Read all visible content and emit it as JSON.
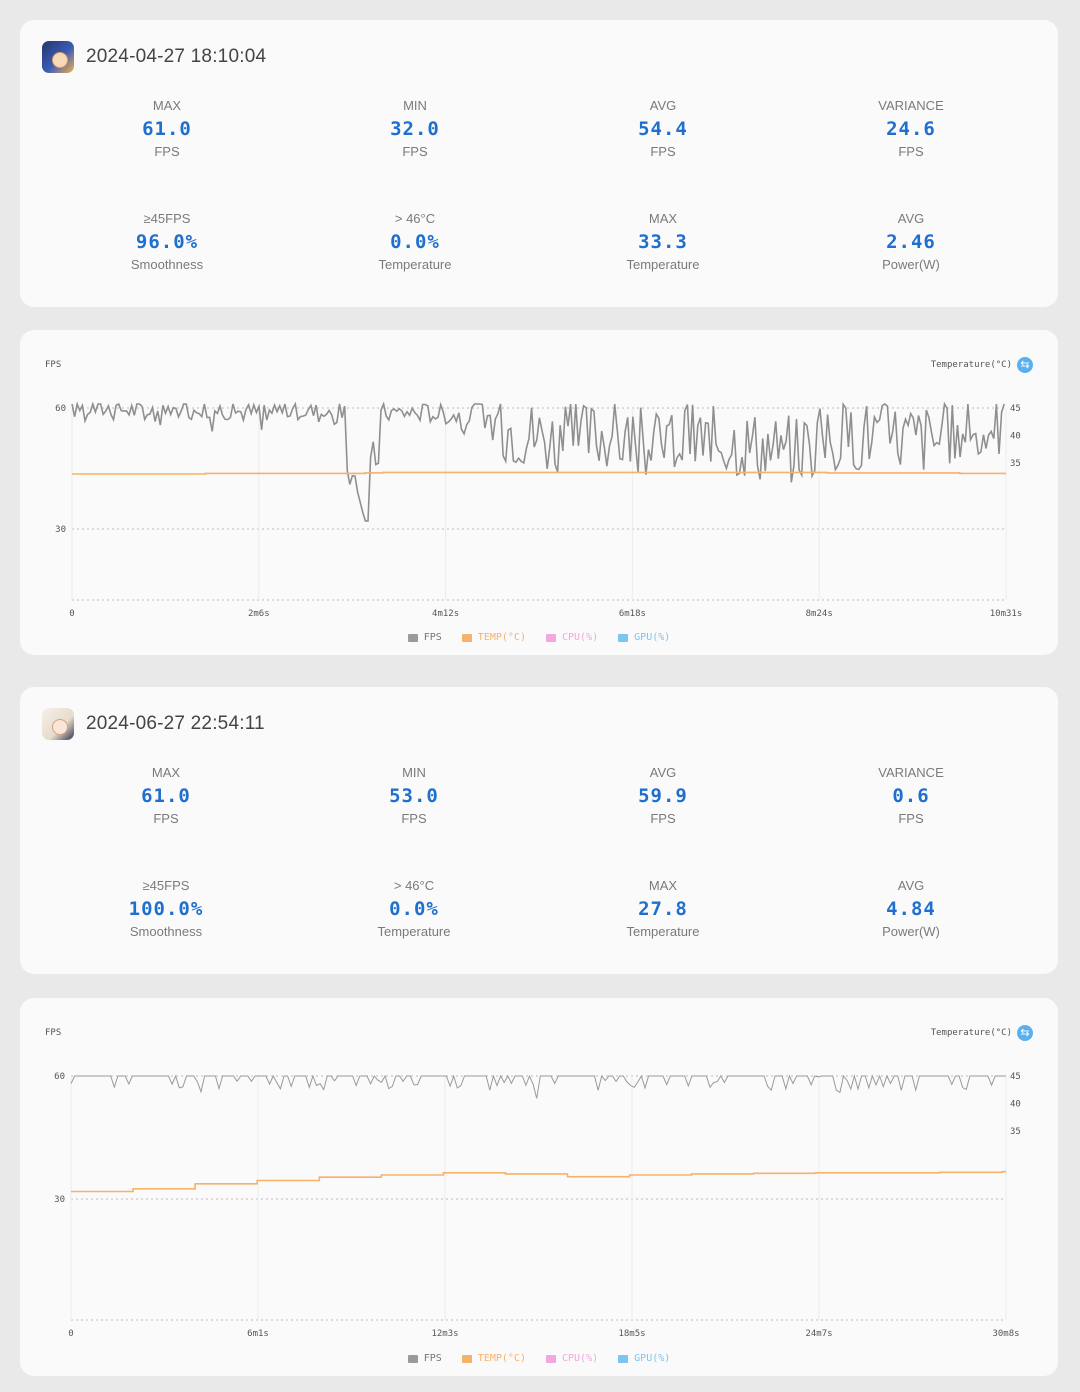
{
  "sessions": [
    {
      "datetime": "2024-04-27 18:10:04",
      "stats": [
        {
          "label": "MAX",
          "value": "61.0",
          "unit": "FPS"
        },
        {
          "label": "MIN",
          "value": "32.0",
          "unit": "FPS"
        },
        {
          "label": "AVG",
          "value": "54.4",
          "unit": "FPS"
        },
        {
          "label": "VARIANCE",
          "value": "24.6",
          "unit": "FPS"
        },
        {
          "label": "≥45FPS",
          "value": "96.0%",
          "unit": "Smoothness"
        },
        {
          "label": "> 46°C",
          "value": "0.0%",
          "unit": "Temperature"
        },
        {
          "label": "MAX",
          "value": "33.3",
          "unit": "Temperature"
        },
        {
          "label": "AVG",
          "value": "2.46",
          "unit": "Power(W)"
        }
      ],
      "chart": {
        "y_title": "FPS",
        "y2_title": "Temperature(°C)",
        "y_ticks": [
          "60",
          "30"
        ],
        "y2_ticks": [
          "45",
          "40",
          "35"
        ],
        "x_ticks": [
          "0",
          "2m6s",
          "4m12s",
          "6m18s",
          "8m24s",
          "10m31s"
        ]
      }
    },
    {
      "datetime": "2024-06-27 22:54:11",
      "stats": [
        {
          "label": "MAX",
          "value": "61.0",
          "unit": "FPS"
        },
        {
          "label": "MIN",
          "value": "53.0",
          "unit": "FPS"
        },
        {
          "label": "AVG",
          "value": "59.9",
          "unit": "FPS"
        },
        {
          "label": "VARIANCE",
          "value": "0.6",
          "unit": "FPS"
        },
        {
          "label": "≥45FPS",
          "value": "100.0%",
          "unit": "Smoothness"
        },
        {
          "label": "> 46°C",
          "value": "0.0%",
          "unit": "Temperature"
        },
        {
          "label": "MAX",
          "value": "27.8",
          "unit": "Temperature"
        },
        {
          "label": "AVG",
          "value": "4.84",
          "unit": "Power(W)"
        }
      ],
      "chart": {
        "y_title": "FPS",
        "y2_title": "Temperature(°C)",
        "y_ticks": [
          "60",
          "30"
        ],
        "y2_ticks": [
          "45",
          "40",
          "35"
        ],
        "x_ticks": [
          "0",
          "6m1s",
          "12m3s",
          "18m5s",
          "24m7s",
          "30m8s"
        ]
      }
    }
  ],
  "legend": [
    {
      "label": "FPS",
      "color": "#9a9a9a"
    },
    {
      "label": "TEMP(°C)",
      "color": "#f5b26b"
    },
    {
      "label": "CPU(%)",
      "color": "#f3a6e0"
    },
    {
      "label": "GPU(%)",
      "color": "#7cc4f2"
    }
  ],
  "chart_data": [
    {
      "type": "line",
      "xlabel": "",
      "ylabel": "FPS",
      "y2label": "Temperature(°C)",
      "x_ticks": [
        "0",
        "2m6s",
        "4m12s",
        "6m18s",
        "8m24s",
        "10m31s"
      ],
      "x_minutes": [
        0,
        0.5,
        1,
        1.5,
        2,
        2.5,
        3,
        3.3,
        3.5,
        4,
        4.5,
        5,
        5.5,
        6,
        6.5,
        7,
        7.5,
        8,
        8.5,
        9,
        9.5,
        10,
        10.5
      ],
      "series": [
        {
          "name": "FPS",
          "axis": "left",
          "color": "#9a9a9a",
          "values": [
            60,
            60,
            59,
            60,
            59,
            60,
            58,
            32,
            59,
            59,
            58,
            55,
            52,
            54,
            51,
            53,
            52,
            50,
            52,
            54,
            53,
            52,
            57
          ]
        },
        {
          "name": "TEMP(°C)",
          "axis": "right",
          "color": "#f5b26b",
          "values": [
            33.0,
            33.0,
            33.0,
            33.1,
            33.1,
            33.1,
            33.1,
            33.2,
            33.3,
            33.3,
            33.3,
            33.3,
            33.3,
            33.3,
            33.3,
            33.3,
            33.3,
            33.3,
            33.2,
            33.2,
            33.2,
            33.1,
            33.1
          ]
        }
      ],
      "y_ticks": [
        60,
        30
      ],
      "y2_ticks": [
        45,
        40,
        35
      ],
      "legend_position": "bottom"
    },
    {
      "type": "line",
      "xlabel": "",
      "ylabel": "FPS",
      "y2label": "Temperature(°C)",
      "x_ticks": [
        "0",
        "6m1s",
        "12m3s",
        "18m5s",
        "24m7s",
        "30m8s"
      ],
      "x_minutes": [
        0,
        2,
        4,
        6,
        8,
        10,
        12,
        14,
        16,
        18,
        20,
        22,
        24,
        26,
        28,
        30
      ],
      "series": [
        {
          "name": "FPS",
          "axis": "left",
          "color": "#9a9a9a",
          "values": [
            60,
            60,
            60,
            60,
            60,
            60,
            60,
            60,
            60,
            60,
            60,
            60,
            60,
            60,
            60,
            60
          ]
        },
        {
          "name": "TEMP(°C)",
          "axis": "right",
          "color": "#f5b26b",
          "values": [
            24.0,
            24.5,
            25.4,
            26.0,
            26.6,
            27.0,
            27.4,
            27.2,
            26.7,
            27.0,
            27.2,
            27.3,
            27.4,
            27.4,
            27.5,
            27.6
          ]
        }
      ],
      "y_ticks": [
        60,
        30
      ],
      "y2_ticks": [
        45,
        40,
        35
      ],
      "legend_position": "bottom"
    }
  ]
}
